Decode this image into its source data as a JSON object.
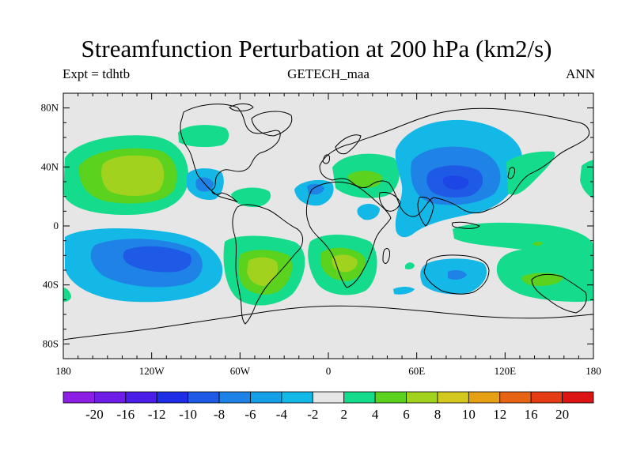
{
  "title": "Streamfunction Perturbation at 200 hPa (km2/s)",
  "subtitle_left": "Expt = tdhtb",
  "subtitle_center": "GETECH_maa",
  "subtitle_right": "ANN",
  "y_ticks": [
    "80N",
    "40N",
    "0",
    "40S",
    "80S"
  ],
  "x_ticks": [
    "180",
    "120W",
    "60W",
    "0",
    "60E",
    "120E",
    "180"
  ],
  "colorbar": {
    "labels": [
      "-20",
      "-16",
      "-12",
      "-10",
      "-8",
      "-6",
      "-4",
      "-2",
      "2",
      "4",
      "6",
      "8",
      "10",
      "12",
      "16",
      "20"
    ],
    "colors": [
      "#8c1ee6",
      "#6e1ee6",
      "#4a1ee6",
      "#1e2ee6",
      "#1e5ae6",
      "#1e82e6",
      "#14a0e6",
      "#14b8e6",
      "#e6e6e6",
      "#14dc8c",
      "#5ad21e",
      "#a0d21e",
      "#d2c81e",
      "#e6a014",
      "#e66414",
      "#e63c14",
      "#dc1414"
    ]
  },
  "colors": {
    "positive_low": "#14dc8c",
    "positive_mid": "#5ad21e",
    "positive_high": "#a0d21e",
    "negative_low": "#14b8e6",
    "negative_mid": "#1e82e6",
    "negative_high": "#1e5ae6",
    "background": "#e6e6e6"
  }
}
